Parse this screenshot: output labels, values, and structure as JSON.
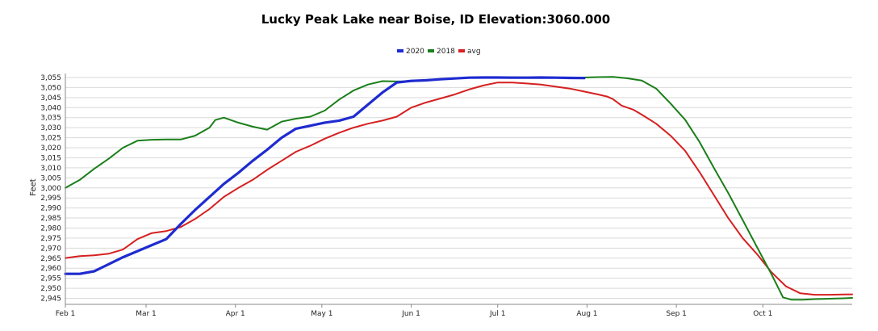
{
  "chart_data": {
    "type": "line",
    "title": "Lucky Peak Lake near Boise, ID  Elevation:3060.000",
    "ylabel": "Feet",
    "xlabel": "",
    "ylim": [
      2942,
      3057
    ],
    "yticks": [
      3055,
      3050,
      3045,
      3040,
      3035,
      3030,
      3025,
      3020,
      3015,
      3010,
      3005,
      3000,
      2995,
      2990,
      2985,
      2980,
      2975,
      2970,
      2965,
      2960,
      2955,
      2950,
      2945
    ],
    "xticks": [
      {
        "label": "Feb 1",
        "day": 0
      },
      {
        "label": "Mar 1",
        "day": 28
      },
      {
        "label": "Apr 1",
        "day": 59
      },
      {
        "label": "May 1",
        "day": 89
      },
      {
        "label": "Jun 1",
        "day": 120
      },
      {
        "label": "Jul 1",
        "day": 150
      },
      {
        "label": "Aug 1",
        "day": 181
      },
      {
        "label": "Sep 1",
        "day": 212
      },
      {
        "label": "Oct 1",
        "day": 242
      }
    ],
    "xlim": [
      0,
      273
    ],
    "legend": {
      "position": "top-center"
    },
    "grid": true,
    "series": [
      {
        "name": "2020",
        "color": "#1f2bd0",
        "width": 3.2,
        "points": [
          [
            0,
            2957.2
          ],
          [
            5,
            2957.2
          ],
          [
            10,
            2958.5
          ],
          [
            15,
            2962
          ],
          [
            20,
            2965.5
          ],
          [
            25,
            2968.5
          ],
          [
            30,
            2971.5
          ],
          [
            35,
            2974.5
          ],
          [
            40,
            2982
          ],
          [
            45,
            2989
          ],
          [
            50,
            2995.5
          ],
          [
            55,
            3002
          ],
          [
            60,
            3007.5
          ],
          [
            65,
            3013.5
          ],
          [
            70,
            3019
          ],
          [
            75,
            3025
          ],
          [
            80,
            3029.5
          ],
          [
            85,
            3031
          ],
          [
            90,
            3032.5
          ],
          [
            95,
            3033.5
          ],
          [
            100,
            3035.5
          ],
          [
            105,
            3041.5
          ],
          [
            110,
            3047.5
          ],
          [
            115,
            3052.5
          ],
          [
            120,
            3053.3
          ],
          [
            125,
            3053.6
          ],
          [
            130,
            3054.1
          ],
          [
            135,
            3054.5
          ],
          [
            140,
            3054.9
          ],
          [
            145,
            3055
          ],
          [
            150,
            3055
          ],
          [
            155,
            3054.9
          ],
          [
            160,
            3054.9
          ],
          [
            165,
            3055
          ],
          [
            170,
            3054.9
          ],
          [
            175,
            3054.8
          ],
          [
            180,
            3054.7
          ]
        ]
      },
      {
        "name": "2018",
        "color": "#1a7f1a",
        "width": 2,
        "points": [
          [
            0,
            3000
          ],
          [
            5,
            3004
          ],
          [
            10,
            3009.5
          ],
          [
            15,
            3014.5
          ],
          [
            20,
            3020
          ],
          [
            25,
            3023.5
          ],
          [
            30,
            3024
          ],
          [
            35,
            3024.1
          ],
          [
            40,
            3024.1
          ],
          [
            45,
            3026
          ],
          [
            50,
            3030
          ],
          [
            52,
            3033.8
          ],
          [
            55,
            3035
          ],
          [
            60,
            3032.5
          ],
          [
            65,
            3030.5
          ],
          [
            70,
            3029
          ],
          [
            75,
            3033
          ],
          [
            80,
            3034.5
          ],
          [
            85,
            3035.5
          ],
          [
            90,
            3038.5
          ],
          [
            95,
            3044
          ],
          [
            100,
            3048.5
          ],
          [
            105,
            3051.5
          ],
          [
            110,
            3053.2
          ],
          [
            115,
            3053
          ],
          [
            120,
            3053.1
          ],
          [
            125,
            3053.5
          ],
          [
            130,
            3054.2
          ],
          [
            135,
            3054.6
          ],
          [
            140,
            3054.8
          ],
          [
            145,
            3055
          ],
          [
            150,
            3055.1
          ],
          [
            155,
            3055.1
          ],
          [
            160,
            3055
          ],
          [
            165,
            3055
          ],
          [
            170,
            3055
          ],
          [
            175,
            3055
          ],
          [
            180,
            3055
          ],
          [
            185,
            3055.2
          ],
          [
            190,
            3055.3
          ],
          [
            195,
            3054.6
          ],
          [
            200,
            3053.5
          ],
          [
            205,
            3049.5
          ],
          [
            210,
            3042
          ],
          [
            215,
            3034
          ],
          [
            220,
            3023
          ],
          [
            225,
            3010
          ],
          [
            230,
            2997.5
          ],
          [
            235,
            2984
          ],
          [
            240,
            2970.5
          ],
          [
            245,
            2957
          ],
          [
            249,
            2945.5
          ],
          [
            252,
            2944.3
          ],
          [
            256,
            2944.3
          ],
          [
            260,
            2944.6
          ],
          [
            265,
            2944.8
          ],
          [
            270,
            2945
          ],
          [
            273,
            2945.2
          ]
        ]
      },
      {
        "name": "avg",
        "color": "#d62020",
        "width": 2,
        "points": [
          [
            0,
            2965.1
          ],
          [
            5,
            2966
          ],
          [
            10,
            2966.4
          ],
          [
            15,
            2967.2
          ],
          [
            20,
            2969.3
          ],
          [
            25,
            2974.5
          ],
          [
            30,
            2977.5
          ],
          [
            35,
            2978.5
          ],
          [
            40,
            2980.5
          ],
          [
            45,
            2984.5
          ],
          [
            50,
            2989.5
          ],
          [
            55,
            2995.5
          ],
          [
            60,
            3000
          ],
          [
            65,
            3004
          ],
          [
            70,
            3009
          ],
          [
            75,
            3013.5
          ],
          [
            80,
            3018
          ],
          [
            85,
            3021
          ],
          [
            90,
            3024.5
          ],
          [
            95,
            3027.5
          ],
          [
            100,
            3030
          ],
          [
            105,
            3032
          ],
          [
            110,
            3033.5
          ],
          [
            115,
            3035.5
          ],
          [
            120,
            3040
          ],
          [
            125,
            3042.5
          ],
          [
            130,
            3044.5
          ],
          [
            135,
            3046.5
          ],
          [
            140,
            3049
          ],
          [
            145,
            3051
          ],
          [
            150,
            3052.5
          ],
          [
            155,
            3052.5
          ],
          [
            160,
            3052
          ],
          [
            165,
            3051.5
          ],
          [
            170,
            3050.5
          ],
          [
            175,
            3049.5
          ],
          [
            180,
            3048
          ],
          [
            185,
            3046.5
          ],
          [
            188,
            3045.5
          ],
          [
            190,
            3044.2
          ],
          [
            193,
            3041
          ],
          [
            197,
            3039
          ],
          [
            200,
            3036.5
          ],
          [
            205,
            3032
          ],
          [
            210,
            3026
          ],
          [
            215,
            3018.5
          ],
          [
            220,
            3008
          ],
          [
            225,
            2996.5
          ],
          [
            230,
            2985
          ],
          [
            235,
            2975
          ],
          [
            240,
            2967
          ],
          [
            245,
            2958
          ],
          [
            250,
            2951
          ],
          [
            255,
            2947.5
          ],
          [
            260,
            2946.8
          ],
          [
            265,
            2946.8
          ],
          [
            270,
            2946.9
          ],
          [
            273,
            2947
          ]
        ]
      }
    ]
  }
}
